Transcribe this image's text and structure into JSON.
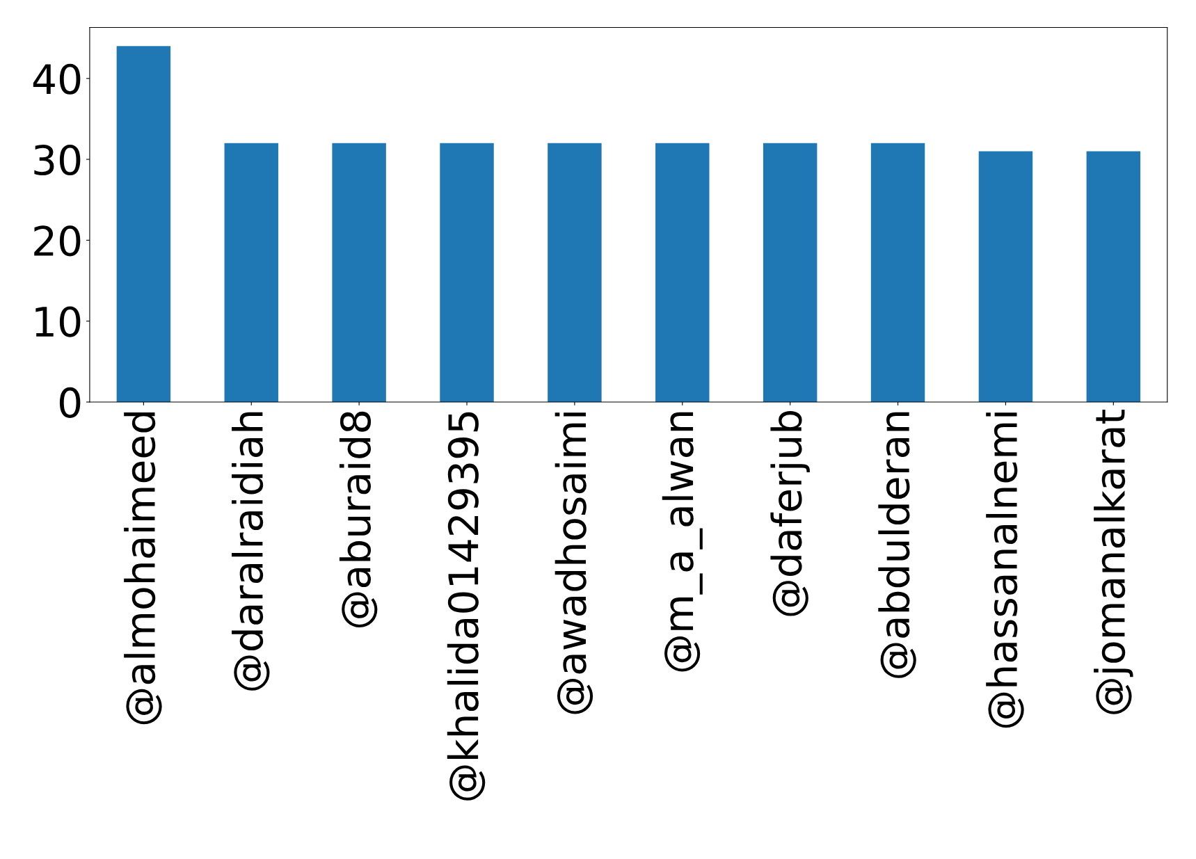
{
  "chart_data": {
    "type": "bar",
    "categories": [
      "@almohaimeed",
      "@daralraidiah",
      "@aburaid8",
      "@khalida01429395",
      "@awadhosaimi",
      "@m_a_alwan",
      "@daferjub",
      "@abdulderan",
      "@hassanalnemi",
      "@jomanalkarat"
    ],
    "values": [
      44,
      32,
      32,
      32,
      32,
      32,
      32,
      32,
      31,
      31
    ],
    "color": "#1f77b4",
    "ylim": [
      0,
      46.3
    ],
    "yticks": [
      0,
      10,
      20,
      30,
      40
    ],
    "grid": false,
    "legend": false
  }
}
